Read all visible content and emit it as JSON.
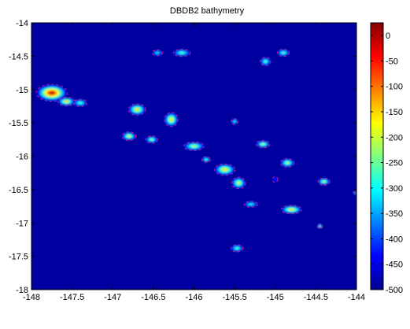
{
  "chart_data": {
    "type": "heatmap",
    "title": "DBDB2 bathymetry",
    "xlabel": "",
    "ylabel": "",
    "xlim": [
      -148,
      -144
    ],
    "ylim": [
      -18,
      -14
    ],
    "x_ticks": [
      -148,
      -147.5,
      -147,
      -146.5,
      -146,
      -145.5,
      -145,
      -144.5,
      -144
    ],
    "y_ticks": [
      -18,
      -17.5,
      -17,
      -16.5,
      -16,
      -15.5,
      -15,
      -14.5,
      -14
    ],
    "colorbar": {
      "min": -500,
      "max": 25,
      "colormap": "jet",
      "ticks": [
        -500,
        -450,
        -400,
        -350,
        -300,
        -250,
        -200,
        -150,
        -100,
        -50,
        0
      ]
    },
    "background_depth": -500,
    "features": [
      {
        "lon": -147.75,
        "lat": -15.05,
        "rx": 0.18,
        "ry": 0.12,
        "peak": 0
      },
      {
        "lon": -147.57,
        "lat": -15.18,
        "rx": 0.1,
        "ry": 0.06,
        "peak": -150
      },
      {
        "lon": -147.4,
        "lat": -15.2,
        "rx": 0.08,
        "ry": 0.05,
        "peak": -250
      },
      {
        "lon": -146.7,
        "lat": -15.3,
        "rx": 0.1,
        "ry": 0.08,
        "peak": -150
      },
      {
        "lon": -146.28,
        "lat": -15.45,
        "rx": 0.08,
        "ry": 0.1,
        "peak": -150
      },
      {
        "lon": -146.8,
        "lat": -15.7,
        "rx": 0.08,
        "ry": 0.06,
        "peak": -180
      },
      {
        "lon": -146.52,
        "lat": -15.75,
        "rx": 0.07,
        "ry": 0.05,
        "peak": -220
      },
      {
        "lon": -146.0,
        "lat": -15.85,
        "rx": 0.12,
        "ry": 0.06,
        "peak": -200
      },
      {
        "lon": -145.85,
        "lat": -16.05,
        "rx": 0.05,
        "ry": 0.04,
        "peak": -250
      },
      {
        "lon": -145.62,
        "lat": -16.2,
        "rx": 0.12,
        "ry": 0.08,
        "peak": -150
      },
      {
        "lon": -145.45,
        "lat": -16.4,
        "rx": 0.08,
        "ry": 0.08,
        "peak": -180
      },
      {
        "lon": -145.5,
        "lat": -15.48,
        "rx": 0.04,
        "ry": 0.04,
        "peak": -280
      },
      {
        "lon": -145.15,
        "lat": -15.82,
        "rx": 0.08,
        "ry": 0.05,
        "peak": -200
      },
      {
        "lon": -144.85,
        "lat": -16.1,
        "rx": 0.08,
        "ry": 0.06,
        "peak": -200
      },
      {
        "lon": -145.0,
        "lat": -16.35,
        "rx": 0.03,
        "ry": 0.04,
        "peak": -430
      },
      {
        "lon": -145.3,
        "lat": -16.72,
        "rx": 0.08,
        "ry": 0.04,
        "peak": -280
      },
      {
        "lon": -144.8,
        "lat": -16.8,
        "rx": 0.12,
        "ry": 0.06,
        "peak": -150
      },
      {
        "lon": -144.4,
        "lat": -16.38,
        "rx": 0.07,
        "ry": 0.05,
        "peak": -200
      },
      {
        "lon": -144.45,
        "lat": -17.05,
        "rx": 0.03,
        "ry": 0.03,
        "peak": -200
      },
      {
        "lon": -145.47,
        "lat": -17.38,
        "rx": 0.07,
        "ry": 0.05,
        "peak": -250
      },
      {
        "lon": -146.15,
        "lat": -14.45,
        "rx": 0.1,
        "ry": 0.05,
        "peak": -250
      },
      {
        "lon": -145.12,
        "lat": -14.58,
        "rx": 0.06,
        "ry": 0.06,
        "peak": -250
      },
      {
        "lon": -144.9,
        "lat": -14.45,
        "rx": 0.07,
        "ry": 0.05,
        "peak": -250
      },
      {
        "lon": -146.45,
        "lat": -14.45,
        "rx": 0.06,
        "ry": 0.04,
        "peak": -300
      },
      {
        "lon": -144.02,
        "lat": -16.55,
        "rx": 0.02,
        "ry": 0.02,
        "peak": -300
      }
    ]
  }
}
